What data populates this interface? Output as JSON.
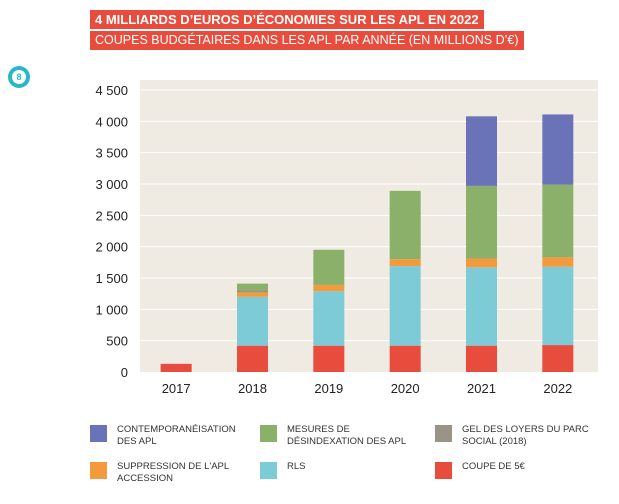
{
  "header": {
    "title": "4 MILLIARDS D’EUROS D’ÉCONOMIES SUR LES APL EN 2022",
    "subtitle": "COUPES BUDGÉTAIRES DANS LES APL PAR ANNÉE (EN MILLIONS D’€)",
    "title_bg": "#e84c3d",
    "badge_text": "8",
    "badge_color": "#29b6c9"
  },
  "colors": {
    "plot_bg": "#efebe3",
    "grid": "#ffffff",
    "axis_text": "#222222"
  },
  "chart_data": {
    "type": "bar",
    "stacked": true,
    "categories": [
      "2017",
      "2018",
      "2019",
      "2020",
      "2021",
      "2022"
    ],
    "ylim": [
      0,
      4500
    ],
    "yticks": [
      0,
      500,
      1000,
      1500,
      2000,
      2500,
      3000,
      3500,
      4000,
      4500
    ],
    "ytick_labels": [
      "0",
      "500",
      "1 000",
      "1 500",
      "2 000",
      "2 500",
      "3 000",
      "3 500",
      "4 000",
      "4 500"
    ],
    "grid": true,
    "legend_position": "bottom",
    "series": [
      {
        "name": "COUPE DE 5€",
        "color": "#e84c3d",
        "values": [
          130,
          420,
          420,
          420,
          420,
          430
        ]
      },
      {
        "name": "RLS",
        "color": "#7ecbd8",
        "values": [
          0,
          780,
          870,
          1270,
          1250,
          1250
        ]
      },
      {
        "name": "SUPPRESSION DE L'APL ACCESSION",
        "color": "#f39a3c",
        "values": [
          0,
          70,
          100,
          110,
          140,
          150
        ]
      },
      {
        "name": "GEL DES LOYERS DU PARC SOCIAL  (2018)",
        "color": "#9a9487",
        "values": [
          0,
          30,
          0,
          0,
          0,
          0
        ]
      },
      {
        "name": "MESURES DE DÉSINDEXATION DES APL",
        "color": "#8bb06a",
        "values": [
          0,
          110,
          560,
          1090,
          1160,
          1160
        ]
      },
      {
        "name": "CONTEMPORANÉISATION DES APL",
        "color": "#6b73b8",
        "values": [
          0,
          0,
          0,
          0,
          1110,
          1120
        ]
      }
    ]
  },
  "legend": [
    {
      "label": "CONTEMPORANÉISATION\nDES APL",
      "color": "#6b73b8"
    },
    {
      "label": "MESURES DE\nDÉSINDEXATION DES APL",
      "color": "#8bb06a"
    },
    {
      "label": "GEL DES LOYERS DU PARC\nSOCIAL  (2018)",
      "color": "#9a9487"
    },
    {
      "label": "SUPPRESSION DE L'APL\nACCESSION",
      "color": "#f39a3c"
    },
    {
      "label": "RLS",
      "color": "#7ecbd8"
    },
    {
      "label": "COUPE DE 5€",
      "color": "#e84c3d"
    }
  ]
}
